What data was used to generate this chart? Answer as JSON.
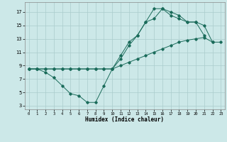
{
  "xlabel": "Humidex (Indice chaleur)",
  "bg_color": "#cce8e8",
  "grid_color": "#aacccc",
  "line_color": "#1a6b5a",
  "xlim": [
    -0.5,
    23.5
  ],
  "ylim": [
    2.5,
    18.5
  ],
  "xticks": [
    0,
    1,
    2,
    3,
    4,
    5,
    6,
    7,
    8,
    9,
    10,
    11,
    12,
    13,
    14,
    15,
    16,
    17,
    18,
    19,
    20,
    21,
    22,
    23
  ],
  "yticks": [
    3,
    5,
    7,
    9,
    11,
    13,
    15,
    17
  ],
  "line1_x": [
    0,
    1,
    2,
    3,
    4,
    5,
    6,
    7,
    8,
    9,
    10,
    11,
    12,
    13,
    14,
    15,
    16,
    17,
    18,
    19,
    20,
    21
  ],
  "line1_y": [
    8.5,
    8.5,
    8.0,
    7.2,
    6.0,
    4.8,
    4.5,
    3.5,
    3.5,
    6.0,
    8.5,
    10.5,
    12.5,
    13.5,
    15.5,
    16.0,
    17.5,
    16.5,
    16.0,
    15.5,
    15.5,
    13.5
  ],
  "line2_x": [
    0,
    1,
    2,
    3,
    4,
    5,
    6,
    7,
    8,
    9,
    10,
    11,
    12,
    13,
    14,
    15,
    16,
    17,
    18,
    19,
    20,
    21,
    22,
    23
  ],
  "line2_y": [
    8.5,
    8.5,
    8.5,
    8.5,
    8.5,
    8.5,
    8.5,
    8.5,
    8.5,
    8.5,
    8.5,
    9.0,
    9.5,
    10.0,
    10.5,
    11.0,
    11.5,
    12.0,
    12.5,
    12.8,
    13.0,
    13.2,
    12.5,
    12.5
  ],
  "line3_x": [
    0,
    1,
    2,
    3,
    4,
    5,
    6,
    7,
    8,
    9,
    10,
    11,
    12,
    13,
    14,
    15,
    16,
    17,
    18,
    19,
    20,
    21,
    22
  ],
  "line3_y": [
    8.5,
    8.5,
    8.5,
    8.5,
    8.5,
    8.5,
    8.5,
    8.5,
    8.5,
    8.5,
    8.5,
    10.0,
    12.0,
    13.5,
    15.5,
    17.5,
    17.5,
    17.0,
    16.5,
    15.5,
    15.5,
    15.0,
    12.5
  ]
}
